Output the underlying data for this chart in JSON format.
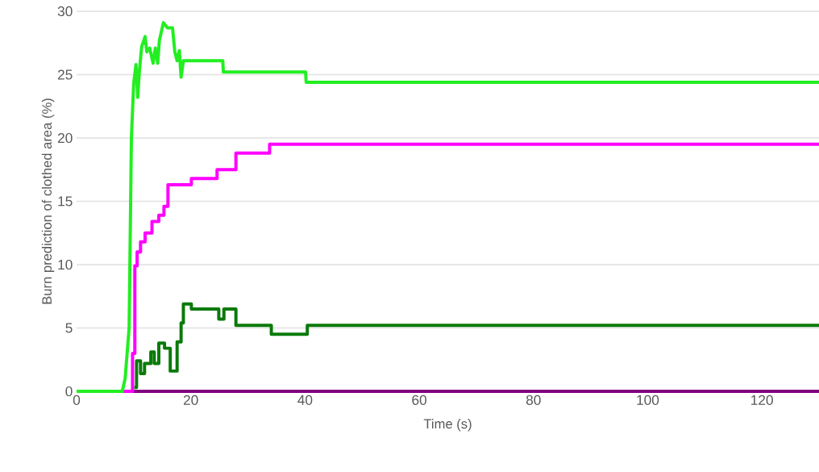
{
  "chart_data": {
    "type": "line",
    "xlabel": "Time (s)",
    "ylabel": "Burn prediction of clothed area (%)",
    "xlim": [
      0,
      130
    ],
    "ylim": [
      0,
      30
    ],
    "xticks": [
      0,
      20,
      40,
      60,
      80,
      100,
      120
    ],
    "yticks": [
      0,
      5,
      10,
      15,
      20,
      25,
      30
    ],
    "grid": "y",
    "marker": "none",
    "line_style": "solid",
    "series": [
      {
        "color": "#800080",
        "x": [
          9.8,
          130
        ],
        "values": [
          0,
          0
        ]
      },
      {
        "type": "step",
        "color": "#ff00ff",
        "x": [
          0,
          9.3,
          9.8,
          10.2,
          10.6,
          11.2,
          12.0,
          13.2,
          14.4,
          15.3,
          16.0,
          20.1,
          24.6,
          27.9,
          33.8,
          130
        ],
        "values": [
          0,
          0,
          3,
          9.9,
          11.0,
          11.8,
          12.5,
          13.4,
          13.9,
          14.6,
          16.3,
          16.8,
          17.5,
          18.8,
          19.5,
          19.5
        ]
      },
      {
        "type": "step",
        "color": "#0a7a0a",
        "x": [
          10.1,
          10.5,
          11.2,
          11.9,
          13.0,
          13.6,
          14.4,
          15.4,
          16.4,
          17.1,
          17.6,
          18.3,
          18.7,
          20.0,
          20.1,
          24.6,
          24.9,
          25.6,
          25.8,
          27.7,
          27.9,
          34.1,
          40.1,
          40.4,
          130
        ],
        "values": [
          0.3,
          2.4,
          1.4,
          2.2,
          3.1,
          2.2,
          3.8,
          3.4,
          1.6,
          1.6,
          3.9,
          5.4,
          6.9,
          6.9,
          6.5,
          6.5,
          5.7,
          5.7,
          6.5,
          6.5,
          5.2,
          4.5,
          4.5,
          5.2,
          5.1
        ]
      },
      {
        "color": "#22ee22",
        "x": [
          0,
          8.0,
          8.5,
          9.2,
          9.6,
          10.0,
          10.4,
          10.7,
          11.0,
          11.4,
          12.0,
          12.3,
          12.8,
          13.4,
          13.8,
          14.2,
          14.5,
          15.2,
          15.9,
          16.8,
          17.2,
          17.6,
          18.0,
          18.3,
          18.7,
          25.6,
          25.7,
          40.1,
          40.2,
          130
        ],
        "values": [
          0,
          0,
          1,
          5,
          20,
          24.3,
          25.8,
          23.2,
          25.3,
          27.2,
          28.0,
          26.8,
          27.1,
          25.9,
          27.1,
          25.9,
          27.7,
          29.1,
          28.7,
          28.7,
          26.8,
          26.1,
          26.9,
          24.8,
          26.1,
          26.1,
          25.2,
          25.2,
          24.4,
          24.4
        ]
      }
    ]
  }
}
